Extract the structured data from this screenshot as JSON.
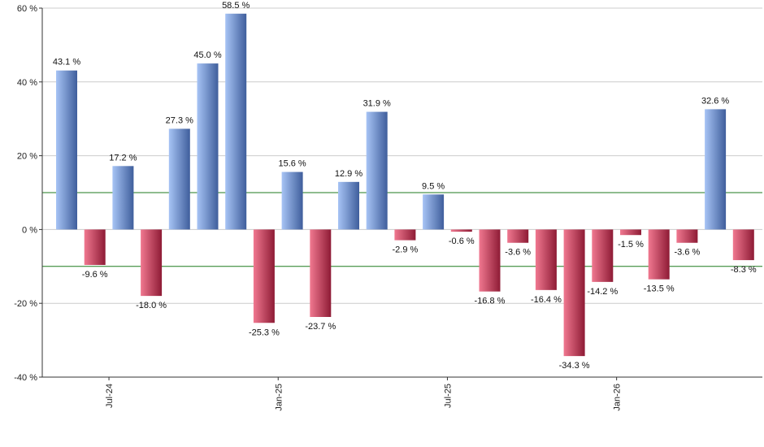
{
  "chart_data": {
    "type": "bar",
    "title": "",
    "xlabel": "",
    "ylabel": "",
    "ylim": [
      -40,
      60
    ],
    "y_ticks": [
      -40,
      -20,
      0,
      20,
      40,
      60
    ],
    "y_tick_suffix": " %",
    "grid": true,
    "value_suffix": " %",
    "x_tick_labels": [
      "Jul-24",
      "Jan-25",
      "Jul-25",
      "Jan-26"
    ],
    "x_tick_bar_index": [
      1.5,
      7.5,
      13.5,
      19.5
    ],
    "reference_lines": [
      10,
      -10
    ],
    "values": [
      43.1,
      -9.6,
      17.2,
      -18.0,
      27.3,
      45.0,
      58.5,
      -25.3,
      15.6,
      -23.7,
      12.9,
      31.9,
      -2.9,
      9.5,
      -0.6,
      -16.8,
      -3.6,
      -16.4,
      -34.3,
      -14.2,
      -1.5,
      -13.5,
      -3.6,
      32.6,
      -8.3
    ],
    "value_labels": [
      "43.1 %",
      "-9.6 %",
      "17.2 %",
      "-18.0 %",
      "27.3 %",
      "45.0 %",
      "58.5 %",
      "-25.3 %",
      "15.6 %",
      "-23.7 %",
      "12.9 %",
      "31.9 %",
      "-2.9 %",
      "9.5 %",
      "-0.6 %",
      "-16.8 %",
      "-3.6 %",
      "-16.4 %",
      "-34.3 %",
      "-14.2 %",
      "-1.5 %",
      "-13.5 %",
      "-3.6 %",
      "32.6 %",
      "-8.3 %"
    ],
    "colors": {
      "positive_light": "#a7c4f5",
      "positive_dark": "#3f5e9c",
      "negative_light": "#f07890",
      "negative_dark": "#8e1b35",
      "reference_line": "#1f7a1f",
      "grid": "#cccccc",
      "axis": "#333333"
    }
  }
}
